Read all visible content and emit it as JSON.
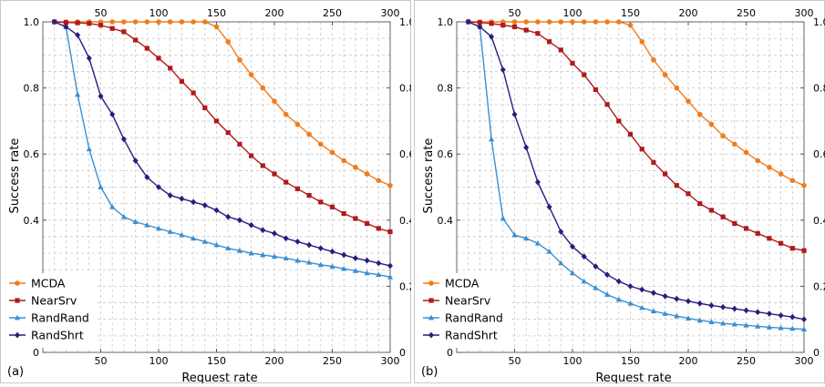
{
  "colors": {
    "MCDA": "#f07c1c",
    "NearSrv": "#b0191c",
    "RandRand": "#3b8fd1",
    "RandShrt": "#2b1c7e"
  },
  "chart_data": [
    {
      "type": "line",
      "panel_label": "(a)",
      "xlabel": "Request rate",
      "ylabel": "Success rate",
      "xlim": [
        0,
        300
      ],
      "ylim": [
        0,
        1
      ],
      "xticks": [
        50,
        100,
        150,
        200,
        250,
        300
      ],
      "yticks": [
        0,
        0.2,
        0.4,
        0.6,
        0.8,
        1.0
      ],
      "ytick_labels": [
        "0",
        "0.2",
        "0.4",
        "0.6",
        "0.8",
        "1.0"
      ],
      "grid": true,
      "legend_position": "bottom-left",
      "x": [
        10,
        20,
        30,
        40,
        50,
        60,
        70,
        80,
        90,
        100,
        110,
        120,
        130,
        140,
        150,
        160,
        170,
        180,
        190,
        200,
        210,
        220,
        230,
        240,
        250,
        260,
        270,
        280,
        290,
        300
      ],
      "series": [
        {
          "name": "MCDA",
          "marker": "circle",
          "values": [
            1.0,
            1.0,
            1.0,
            1.0,
            1.0,
            1.0,
            1.0,
            1.0,
            1.0,
            1.0,
            1.0,
            1.0,
            1.0,
            1.0,
            0.985,
            0.94,
            0.885,
            0.84,
            0.8,
            0.76,
            0.72,
            0.69,
            0.66,
            0.63,
            0.605,
            0.58,
            0.56,
            0.54,
            0.52,
            0.505
          ]
        },
        {
          "name": "NearSrv",
          "marker": "square",
          "values": [
            1.0,
            0.998,
            0.997,
            0.995,
            0.99,
            0.98,
            0.97,
            0.945,
            0.92,
            0.89,
            0.86,
            0.82,
            0.785,
            0.74,
            0.7,
            0.665,
            0.63,
            0.595,
            0.565,
            0.54,
            0.515,
            0.495,
            0.475,
            0.455,
            0.44,
            0.42,
            0.405,
            0.39,
            0.375,
            0.365
          ]
        },
        {
          "name": "RandRand",
          "marker": "triangle",
          "values": [
            1.0,
            0.985,
            0.78,
            0.615,
            0.5,
            0.44,
            0.41,
            0.395,
            0.385,
            0.375,
            0.365,
            0.355,
            0.345,
            0.335,
            0.325,
            0.315,
            0.308,
            0.3,
            0.295,
            0.29,
            0.285,
            0.278,
            0.272,
            0.265,
            0.26,
            0.253,
            0.247,
            0.24,
            0.235,
            0.228
          ]
        },
        {
          "name": "RandShrt",
          "marker": "diamond",
          "values": [
            1.0,
            0.985,
            0.96,
            0.89,
            0.775,
            0.72,
            0.645,
            0.58,
            0.53,
            0.5,
            0.475,
            0.465,
            0.455,
            0.445,
            0.43,
            0.41,
            0.4,
            0.385,
            0.37,
            0.36,
            0.345,
            0.335,
            0.325,
            0.315,
            0.305,
            0.295,
            0.285,
            0.278,
            0.27,
            0.262
          ]
        }
      ]
    },
    {
      "type": "line",
      "panel_label": "(b)",
      "xlabel": "Request rate",
      "ylabel": "Success rate",
      "xlim": [
        0,
        300
      ],
      "ylim": [
        0,
        1
      ],
      "xticks": [
        50,
        100,
        150,
        200,
        250,
        300
      ],
      "yticks": [
        0,
        0.2,
        0.4,
        0.6,
        0.8,
        1.0
      ],
      "ytick_labels": [
        "0",
        "0.2",
        "0.4",
        "0.6",
        "0.8",
        "1.0"
      ],
      "grid": true,
      "legend_position": "bottom-left",
      "x": [
        10,
        20,
        30,
        40,
        50,
        60,
        70,
        80,
        90,
        100,
        110,
        120,
        130,
        140,
        150,
        160,
        170,
        180,
        190,
        200,
        210,
        220,
        230,
        240,
        250,
        260,
        270,
        280,
        290,
        300
      ],
      "series": [
        {
          "name": "MCDA",
          "marker": "circle",
          "values": [
            1.0,
            1.0,
            1.0,
            1.0,
            1.0,
            1.0,
            1.0,
            1.0,
            1.0,
            1.0,
            1.0,
            1.0,
            1.0,
            1.0,
            0.99,
            0.94,
            0.885,
            0.84,
            0.8,
            0.76,
            0.72,
            0.69,
            0.655,
            0.63,
            0.605,
            0.58,
            0.56,
            0.54,
            0.52,
            0.505
          ]
        },
        {
          "name": "NearSrv",
          "marker": "square",
          "values": [
            1.0,
            0.998,
            0.995,
            0.99,
            0.985,
            0.975,
            0.965,
            0.94,
            0.915,
            0.875,
            0.84,
            0.795,
            0.75,
            0.7,
            0.66,
            0.615,
            0.575,
            0.54,
            0.505,
            0.48,
            0.45,
            0.43,
            0.41,
            0.39,
            0.375,
            0.36,
            0.345,
            0.33,
            0.315,
            0.308
          ]
        },
        {
          "name": "RandRand",
          "marker": "triangle",
          "values": [
            1.0,
            0.985,
            0.645,
            0.405,
            0.355,
            0.345,
            0.33,
            0.305,
            0.27,
            0.24,
            0.215,
            0.195,
            0.175,
            0.16,
            0.148,
            0.135,
            0.125,
            0.117,
            0.11,
            0.103,
            0.097,
            0.092,
            0.088,
            0.085,
            0.082,
            0.079,
            0.076,
            0.074,
            0.072,
            0.07
          ]
        },
        {
          "name": "RandShrt",
          "marker": "diamond",
          "values": [
            1.0,
            0.985,
            0.955,
            0.855,
            0.72,
            0.62,
            0.515,
            0.44,
            0.365,
            0.32,
            0.29,
            0.26,
            0.235,
            0.215,
            0.2,
            0.19,
            0.18,
            0.17,
            0.162,
            0.155,
            0.148,
            0.142,
            0.137,
            0.132,
            0.127,
            0.122,
            0.117,
            0.112,
            0.107,
            0.1
          ]
        }
      ]
    }
  ]
}
